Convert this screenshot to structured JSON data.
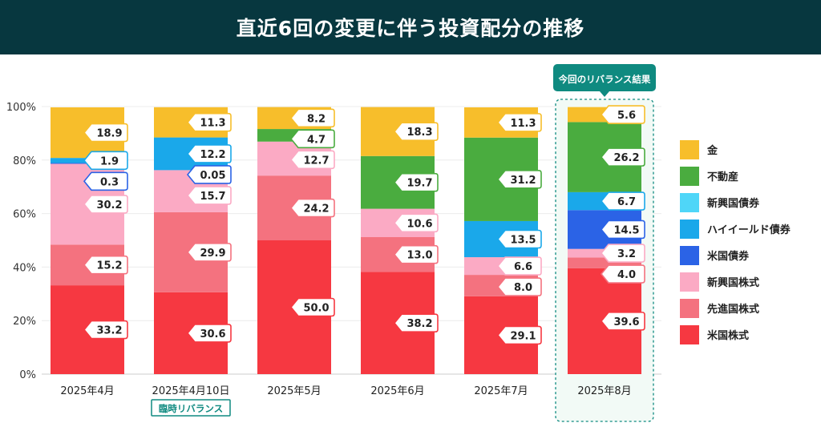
{
  "header": {
    "title": "直近6回の変更に伴う投資配分の推移"
  },
  "highlight_label": "今回のリバランス結果",
  "categories": [
    {
      "label": "2025年4月",
      "sublabel": ""
    },
    {
      "label": "2025年4月10日",
      "sublabel": "臨時リバランス"
    },
    {
      "label": "2025年5月",
      "sublabel": ""
    },
    {
      "label": "2025年6月",
      "sublabel": ""
    },
    {
      "label": "2025年7月",
      "sublabel": ""
    },
    {
      "label": "2025年8月",
      "sublabel": ""
    }
  ],
  "colors": {
    "gold": "#f7be2b",
    "realestate": "#4aac3f",
    "em_bond": "#4fd6f8",
    "hy_bond": "#1aa8ea",
    "us_bond": "#2b63e6",
    "em_equity": "#fbaac4",
    "dev_equity": "#f4727f",
    "us_equity": "#f63841",
    "header": "#07373f",
    "accent": "#0f8a80"
  },
  "chart_data": {
    "type": "bar",
    "stacked": true,
    "categories": [
      "2025年4月",
      "2025年4月10日",
      "2025年5月",
      "2025年6月",
      "2025年7月",
      "2025年8月"
    ],
    "ylim": [
      0,
      100
    ],
    "yticks": [
      "0%",
      "20%",
      "40%",
      "60%",
      "80%",
      "100%"
    ],
    "legend_position": "right",
    "series": [
      {
        "name": "米国株式",
        "key": "us_equity",
        "values": [
          33.2,
          30.6,
          50.0,
          38.2,
          29.1,
          39.6
        ]
      },
      {
        "name": "先進国株式",
        "key": "dev_equity",
        "values": [
          15.2,
          29.9,
          24.2,
          13.0,
          8.0,
          4.0
        ]
      },
      {
        "name": "新興国株式",
        "key": "em_equity",
        "values": [
          30.2,
          15.7,
          12.7,
          10.6,
          6.6,
          3.2
        ]
      },
      {
        "name": "米国債券",
        "key": "us_bond",
        "values": [
          0.3,
          0.05,
          0,
          0,
          0,
          14.5
        ]
      },
      {
        "name": "ハイイールド債券",
        "key": "hy_bond",
        "values": [
          1.9,
          12.2,
          0,
          0,
          13.5,
          6.7
        ]
      },
      {
        "name": "新興国債券",
        "key": "em_bond",
        "values": [
          0,
          0,
          0,
          0,
          0,
          0
        ]
      },
      {
        "name": "不動産",
        "key": "realestate",
        "values": [
          0,
          0,
          4.7,
          19.7,
          31.2,
          26.2
        ]
      },
      {
        "name": "金",
        "key": "gold",
        "values": [
          18.9,
          11.3,
          8.2,
          18.3,
          11.3,
          5.6
        ]
      }
    ],
    "data_labels": [
      [
        "33.2",
        "15.2",
        "30.2",
        "0.3",
        "1.9",
        "",
        "",
        "18.9"
      ],
      [
        "30.6",
        "29.9",
        "15.7",
        "0.05",
        "12.2",
        "",
        "",
        "11.3"
      ],
      [
        "50.0",
        "24.2",
        "12.7",
        "",
        "",
        "",
        "4.7",
        "8.2"
      ],
      [
        "38.2",
        "13.0",
        "10.6",
        "",
        "",
        "",
        "19.7",
        "18.3"
      ],
      [
        "29.1",
        "8.0",
        "6.6",
        "",
        "13.5",
        "",
        "31.2",
        "11.3"
      ],
      [
        "39.6",
        "4.0",
        "3.2",
        "14.5",
        "6.7",
        "",
        "26.2",
        "5.6"
      ]
    ]
  },
  "legend": [
    {
      "label": "金",
      "key": "gold"
    },
    {
      "label": "不動産",
      "key": "realestate"
    },
    {
      "label": "新興国債券",
      "key": "em_bond"
    },
    {
      "label": "ハイイールド債券",
      "key": "hy_bond"
    },
    {
      "label": "米国債券",
      "key": "us_bond"
    },
    {
      "label": "新興国株式",
      "key": "em_equity"
    },
    {
      "label": "先進国株式",
      "key": "dev_equity"
    },
    {
      "label": "米国株式",
      "key": "us_equity"
    }
  ]
}
